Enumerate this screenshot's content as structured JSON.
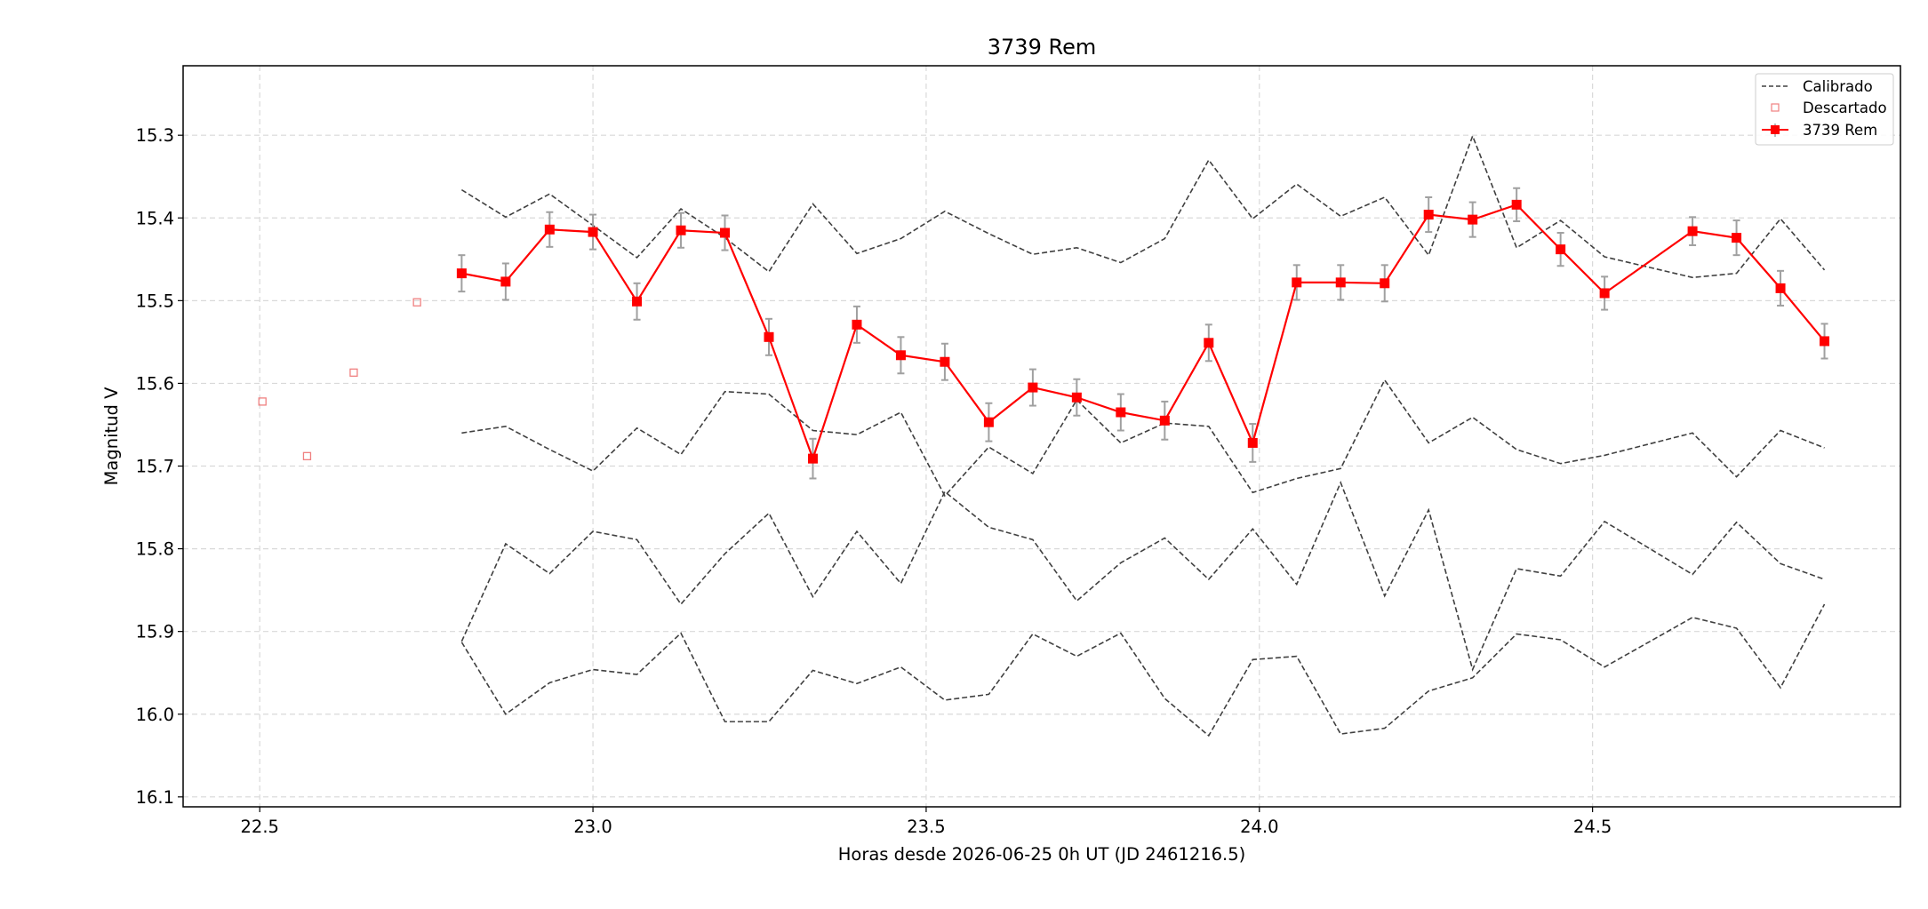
{
  "chart_data": {
    "type": "line",
    "title": "3739 Rem",
    "xlabel": "Horas desde 2026-06-25 0h UT (JD 2461216.5)",
    "ylabel": "Magnitud V",
    "xlim": [
      22.385,
      24.962
    ],
    "ylim": [
      16.112,
      15.216
    ],
    "y_inverted": true,
    "grid": true,
    "legend_position": "top-right",
    "x_ticks": [
      "22.5",
      "23.0",
      "23.5",
      "24.0",
      "24.5"
    ],
    "y_ticks": [
      "15.3",
      "15.4",
      "15.5",
      "15.6",
      "15.7",
      "15.8",
      "15.9",
      "16.0",
      "16.1"
    ],
    "colors": {
      "target": "#ff0000",
      "calibrated": "#404040",
      "discarded": "#f08080",
      "errorbar": "#a0a0a0",
      "grid": "#d9d9d9"
    },
    "legend": [
      {
        "label": "Calibrado",
        "style": "dashed-line"
      },
      {
        "label": "Descartado",
        "style": "open-square"
      },
      {
        "label": "3739 Rem",
        "style": "line-square-errorbar"
      }
    ],
    "x": [
      22.803,
      22.869,
      22.935,
      23.0,
      23.066,
      23.132,
      23.198,
      23.264,
      23.33,
      23.396,
      23.462,
      23.528,
      23.594,
      23.66,
      23.726,
      23.792,
      23.858,
      23.924,
      23.99,
      24.056,
      24.122,
      24.188,
      24.254,
      24.32,
      24.386,
      24.452,
      24.518,
      24.65,
      24.716,
      24.782,
      24.848
    ],
    "series": [
      {
        "name": "3739 Rem",
        "role": "target",
        "values": [
          15.467,
          15.477,
          15.414,
          15.417,
          15.501,
          15.415,
          15.418,
          15.544,
          15.691,
          15.529,
          15.566,
          15.574,
          15.647,
          15.605,
          15.617,
          15.635,
          15.645,
          15.551,
          15.672,
          15.478,
          15.478,
          15.479,
          15.396,
          15.402,
          15.384,
          15.438,
          15.491,
          15.416,
          15.424,
          15.485,
          15.549
        ],
        "errors": [
          0.022,
          0.022,
          0.021,
          0.021,
          0.022,
          0.021,
          0.021,
          0.022,
          0.024,
          0.022,
          0.022,
          0.022,
          0.023,
          0.022,
          0.022,
          0.022,
          0.023,
          0.022,
          0.023,
          0.021,
          0.021,
          0.022,
          0.021,
          0.021,
          0.02,
          0.02,
          0.02,
          0.017,
          0.021,
          0.021,
          0.021
        ]
      },
      {
        "name": "Calibrado",
        "role": "calibrated",
        "values": [
          15.366,
          15.399,
          15.371,
          15.409,
          15.448,
          15.389,
          15.424,
          15.465,
          15.383,
          15.443,
          15.425,
          15.392,
          15.419,
          15.444,
          15.436,
          15.454,
          15.425,
          15.33,
          15.401,
          15.359,
          15.398,
          15.375,
          15.445,
          15.301,
          15.436,
          15.403,
          15.447,
          15.472,
          15.467,
          15.401,
          15.463
        ]
      },
      {
        "role": "calibrated",
        "values": [
          15.66,
          15.652,
          15.68,
          15.706,
          15.654,
          15.686,
          15.61,
          15.613,
          15.657,
          15.662,
          15.635,
          15.736,
          15.677,
          15.709,
          15.62,
          15.672,
          15.648,
          15.652,
          15.732,
          15.715,
          15.703,
          15.596,
          15.672,
          15.641,
          15.68,
          15.697,
          15.687,
          15.66,
          15.713,
          15.657,
          15.678
        ]
      },
      {
        "role": "calibrated",
        "values": [
          15.912,
          15.794,
          15.83,
          15.779,
          15.789,
          15.867,
          15.806,
          15.757,
          15.858,
          15.779,
          15.842,
          15.731,
          15.774,
          15.789,
          15.863,
          15.817,
          15.787,
          15.837,
          15.776,
          15.843,
          15.72,
          15.857,
          15.753,
          15.946,
          15.824,
          15.833,
          15.767,
          15.831,
          15.768,
          15.818,
          15.837
        ]
      },
      {
        "role": "calibrated",
        "values": [
          15.913,
          16.0,
          15.962,
          15.946,
          15.952,
          15.902,
          16.009,
          16.009,
          15.947,
          15.963,
          15.943,
          15.983,
          15.976,
          15.903,
          15.93,
          15.902,
          15.981,
          16.026,
          15.934,
          15.93,
          16.024,
          16.017,
          15.972,
          15.956,
          15.903,
          15.91,
          15.943,
          15.883,
          15.896,
          15.968,
          15.867
        ]
      },
      {
        "name": "Descartado",
        "role": "discarded",
        "x": [
          22.504,
          22.571,
          22.641,
          22.736
        ],
        "values": [
          15.622,
          15.688,
          15.587,
          15.502
        ]
      }
    ]
  }
}
